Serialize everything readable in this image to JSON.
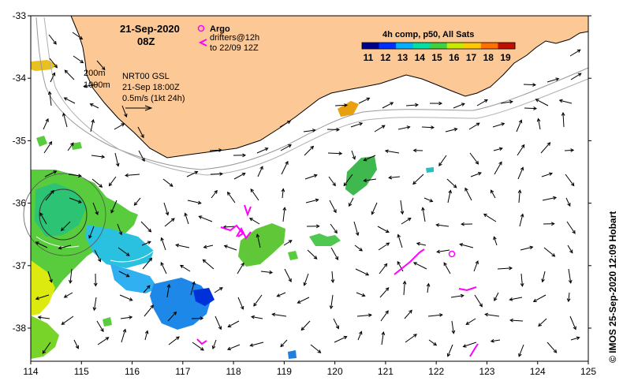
{
  "title": {
    "date": "21-Sep-2020",
    "hour": "08Z"
  },
  "legend": {
    "argo_label": "Argo",
    "drifters_line1": "drifters@12h",
    "drifters_line2": "to 22/09 12Z",
    "colorbar_title": "4h comp, p50, All Sats",
    "colorbar_ticks": [
      "11",
      "12",
      "13",
      "14",
      "15",
      "16",
      "17",
      "18",
      "19"
    ],
    "colorbar_colors": [
      "#00008c",
      "#0030ff",
      "#00b0ff",
      "#00e0a0",
      "#40d040",
      "#c8e800",
      "#ffc800",
      "#ff7000",
      "#c01000"
    ]
  },
  "annotations": {
    "depth_200": "200m",
    "depth_1000": "1000m",
    "model_name": "NRT00 GSL",
    "model_time": "21-Sep 18:00Z",
    "scale_label": "0.5m/s (1kt 24h)"
  },
  "credit": "© IMOS 25-Sep-2020 12:09 Hobart",
  "axes": {
    "x_ticks": [
      "114",
      "115",
      "116",
      "117",
      "118",
      "119",
      "120",
      "121",
      "122",
      "123",
      "124",
      "125"
    ],
    "y_ticks": [
      "-33",
      "-34",
      "-35",
      "-36",
      "-37",
      "-38"
    ]
  },
  "colors": {
    "land": "#fcc896",
    "drifter": "#ff00ff",
    "argo": "#ff00ff",
    "isobath": "#999999"
  }
}
